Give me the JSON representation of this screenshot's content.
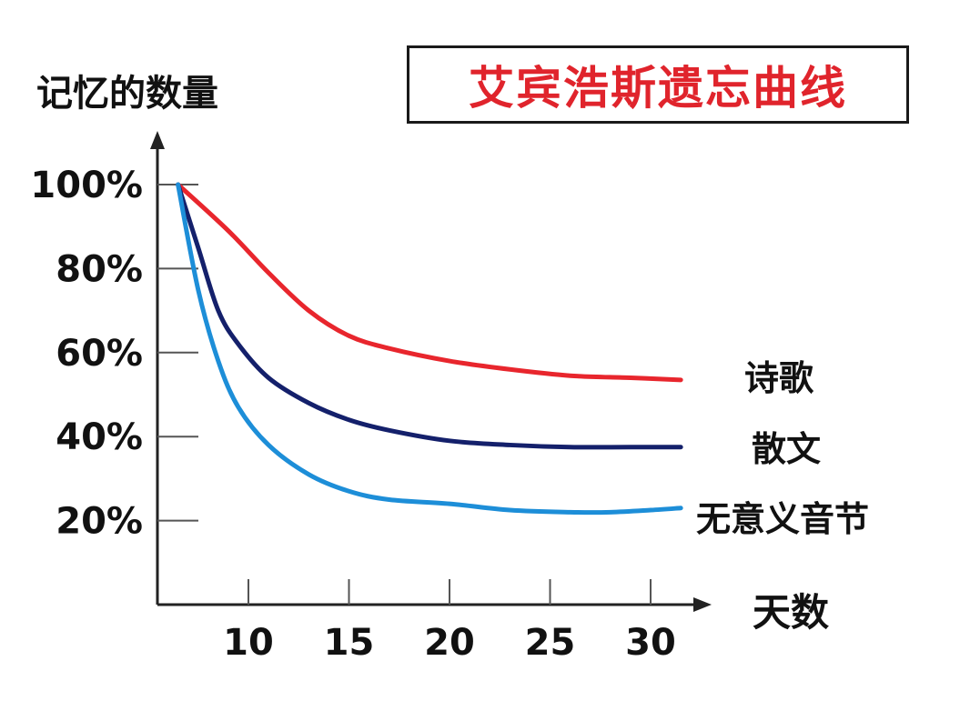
{
  "chart_data": {
    "type": "line",
    "title": "艾宾浩斯遗忘曲线",
    "ylabel": "记忆的数量",
    "xlabel": "天数",
    "xlim": [
      5.5,
      32
    ],
    "ylim": [
      0,
      100
    ],
    "x_ticks": [
      10,
      15,
      20,
      25,
      30
    ],
    "y_ticks": [
      20,
      40,
      60,
      80,
      100
    ],
    "x_tick_labels": [
      "10",
      "15",
      "20",
      "25",
      "30"
    ],
    "y_tick_labels": [
      "20%",
      "40%",
      "60%",
      "80%",
      "100%"
    ],
    "grid": false,
    "series": [
      {
        "name": "诗歌",
        "color": "#e8262d",
        "points": [
          [
            6.5,
            100
          ],
          [
            9,
            89
          ],
          [
            11,
            79
          ],
          [
            13,
            70
          ],
          [
            15,
            64
          ],
          [
            17,
            61
          ],
          [
            20,
            58
          ],
          [
            23,
            56
          ],
          [
            26,
            54.5
          ],
          [
            29,
            54
          ],
          [
            31.5,
            53.5
          ]
        ]
      },
      {
        "name": "散文",
        "color": "#14206b",
        "points": [
          [
            6.5,
            100
          ],
          [
            7.5,
            85
          ],
          [
            8.5,
            70
          ],
          [
            9.5,
            62
          ],
          [
            11,
            54
          ],
          [
            13,
            48
          ],
          [
            15,
            44
          ],
          [
            17,
            41.5
          ],
          [
            20,
            39
          ],
          [
            23,
            38
          ],
          [
            26,
            37.5
          ],
          [
            29,
            37.5
          ],
          [
            31.5,
            37.5
          ]
        ]
      },
      {
        "name": "无意义音节",
        "color": "#1d8ed8",
        "points": [
          [
            6.5,
            100
          ],
          [
            7.5,
            75
          ],
          [
            8.5,
            58
          ],
          [
            9.5,
            47
          ],
          [
            11,
            38
          ],
          [
            13,
            31
          ],
          [
            15,
            27
          ],
          [
            17,
            25
          ],
          [
            20,
            24
          ],
          [
            23,
            22.5
          ],
          [
            26,
            22
          ],
          [
            28,
            22
          ],
          [
            30,
            22.5
          ],
          [
            31.5,
            23
          ]
        ]
      }
    ]
  }
}
